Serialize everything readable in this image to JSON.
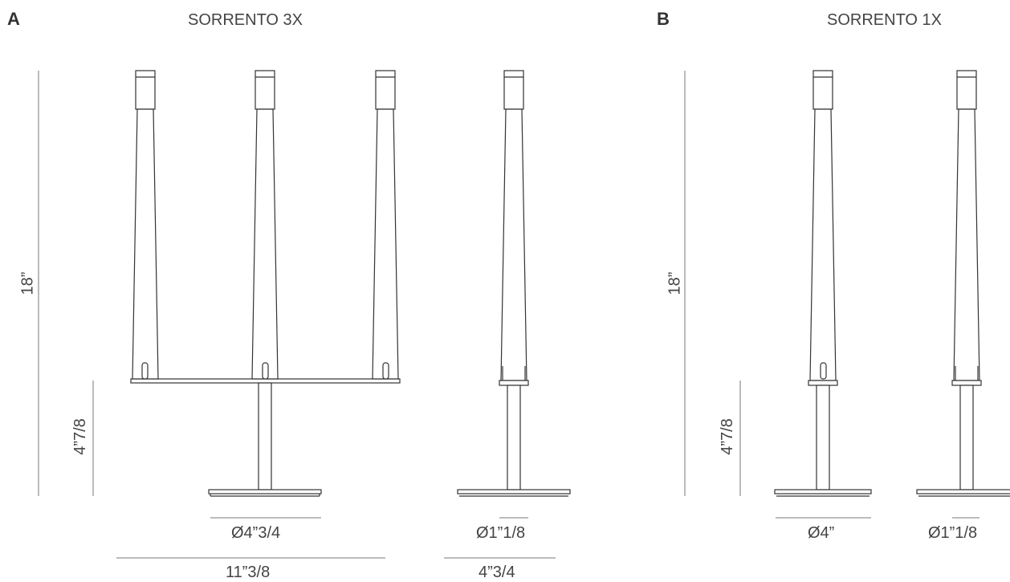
{
  "section_a": {
    "letter": "A",
    "title": "SORRENTO 3X",
    "height_total": "18”",
    "height_base": "4”7/8",
    "base_diameter": "Ø4”3/4",
    "width_total": "11”3/8",
    "tube_diameter": "Ø1”1/8",
    "side_width": "4”3/4"
  },
  "section_b": {
    "letter": "B",
    "title": "SORRENTO 1X",
    "height_total": "18”",
    "height_base": "4”7/8",
    "base_diameter": "Ø4”",
    "tube_diameter": "Ø1”1/8"
  }
}
